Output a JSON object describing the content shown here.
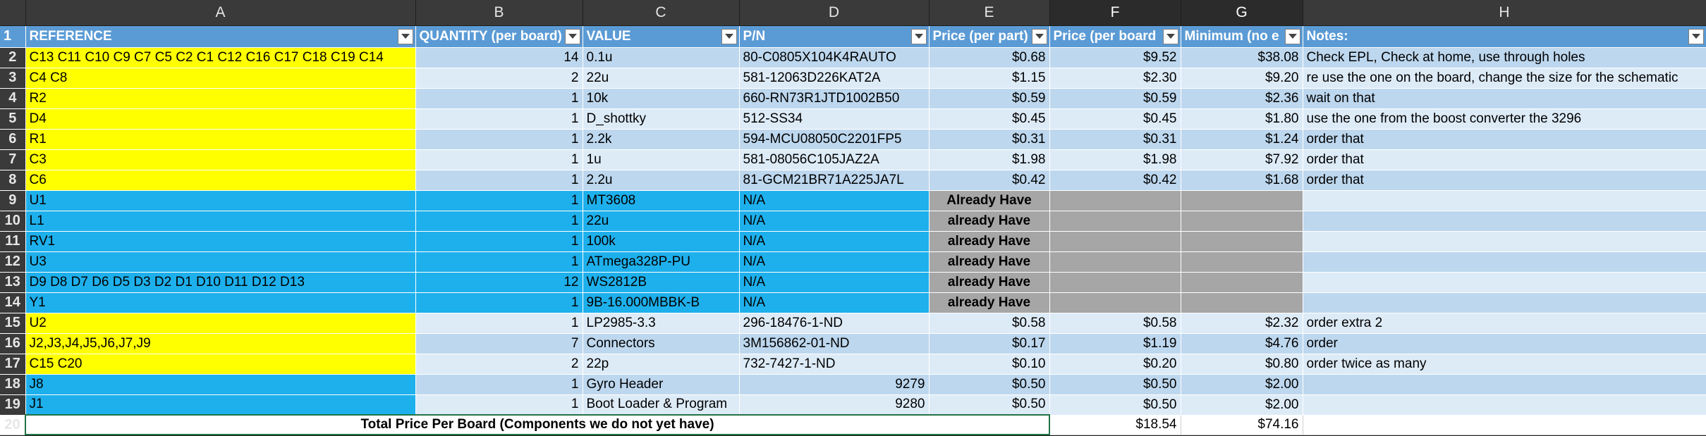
{
  "columns": [
    "A",
    "B",
    "C",
    "D",
    "E",
    "F",
    "G",
    "H"
  ],
  "headers": {
    "reference": "REFERENCE",
    "quantity": "QUANTITY (per board)",
    "value": "VALUE",
    "pn": "P/N",
    "price_part": "Price (per part)",
    "price_board": "Price (per board",
    "minimum": "Minimum (no e",
    "notes": "Notes:"
  },
  "rows": [
    {
      "ref": "C13 C11 C10 C9 C7 C5 C2 C1 C12 C16 C17 C18 C19 C14",
      "qty": "14",
      "value": "0.1u",
      "pn": "80-C0805X104K4RAUTO",
      "pp": "$0.68",
      "pb": "$9.52",
      "min": "$38.08",
      "notes": "Check EPL, Check at home, use through holes"
    },
    {
      "ref": "C4 C8",
      "qty": "2",
      "value": "22u",
      "pn": "581-12063D226KAT2A",
      "pp": "$1.15",
      "pb": "$2.30",
      "min": "$9.20",
      "notes": "re use the one on the board, change the size for the schematic"
    },
    {
      "ref": "R2",
      "qty": "1",
      "value": "10k",
      "pn": "660-RN73R1JTD1002B50",
      "pp": "$0.59",
      "pb": "$0.59",
      "min": "$2.36",
      "notes": "wait on that"
    },
    {
      "ref": "D4",
      "qty": "1",
      "value": "D_shottky",
      "pn": "512-SS34",
      "pp": "$0.45",
      "pb": "$0.45",
      "min": "$1.80",
      "notes": "use the one from the boost converter the 3296"
    },
    {
      "ref": "R1",
      "qty": "1",
      "value": "2.2k",
      "pn": "594-MCU08050C2201FP5",
      "pp": "$0.31",
      "pb": "$0.31",
      "min": "$1.24",
      "notes": "order that"
    },
    {
      "ref": "C3",
      "qty": "1",
      "value": "1u",
      "pn": "581-08056C105JAZ2A",
      "pp": "$1.98",
      "pb": "$1.98",
      "min": "$7.92",
      "notes": "order that"
    },
    {
      "ref": "C6",
      "qty": "1",
      "value": "2.2u",
      "pn": "81-GCM21BR71A225JA7L",
      "pp": "$0.42",
      "pb": "$0.42",
      "min": "$1.68",
      "notes": "order that"
    },
    {
      "ref": "U1",
      "qty": "1",
      "value": "MT3608",
      "pn": "N/A",
      "pp": "Already Have",
      "pb": "",
      "min": "",
      "notes": ""
    },
    {
      "ref": "L1",
      "qty": "1",
      "value": "22u",
      "pn": "N/A",
      "pp": "already Have",
      "pb": "",
      "min": "",
      "notes": ""
    },
    {
      "ref": "RV1",
      "qty": "1",
      "value": "100k",
      "pn": "N/A",
      "pp": "already Have",
      "pb": "",
      "min": "",
      "notes": ""
    },
    {
      "ref": "U3",
      "qty": "1",
      "value": "ATmega328P-PU",
      "pn": "N/A",
      "pp": "already Have",
      "pb": "",
      "min": "",
      "notes": ""
    },
    {
      "ref": "D9 D8 D7 D6 D5 D3 D2 D1 D10 D11 D12 D13",
      "qty": "12",
      "value": "WS2812B",
      "pn": "N/A",
      "pp": "already Have",
      "pb": "",
      "min": "",
      "notes": ""
    },
    {
      "ref": "Y1",
      "qty": "1",
      "value": "9B-16.000MBBK-B",
      "pn": "N/A",
      "pp": "already Have",
      "pb": "",
      "min": "",
      "notes": ""
    },
    {
      "ref": "U2",
      "qty": "1",
      "value": "LP2985-3.3",
      "pn": "296-18476-1-ND",
      "pp": "$0.58",
      "pb": "$0.58",
      "min": "$2.32",
      "notes": "order extra 2"
    },
    {
      "ref": "J2,J3,J4,J5,J6,J7,J9",
      "qty": "7",
      "value": "Connectors",
      "pn": "3M156862-01-ND",
      "pp": "$0.17",
      "pb": "$1.19",
      "min": "$4.76",
      "notes": "order"
    },
    {
      "ref": "C15 C20",
      "qty": "2",
      "value": "22p",
      "pn": "732-7427-1-ND",
      "pp": "$0.10",
      "pb": "$0.20",
      "min": "$0.80",
      "notes": "order twice as many"
    },
    {
      "ref": "J8",
      "qty": "1",
      "value": "Gyro Header",
      "pn": "9279",
      "pp": "$0.50",
      "pb": "$0.50",
      "min": "$2.00",
      "notes": ""
    },
    {
      "ref": "J1",
      "qty": "1",
      "value": "Boot Loader & Program",
      "pn": "9280",
      "pp": "$0.50",
      "pb": "$0.50",
      "min": "$2.00",
      "notes": ""
    }
  ],
  "total": {
    "label": "Total Price Per Board (Components we do not yet have)",
    "price_board": "$18.54",
    "minimum": "$74.16"
  },
  "colors": {
    "header_blue": "#5b9bd5",
    "yellow": "#ffff00",
    "bright_blue": "#1eb0ec",
    "light_blue_1": "#bdd7ee",
    "light_blue_2": "#ddebf7",
    "gray": "#a6a6a6"
  }
}
